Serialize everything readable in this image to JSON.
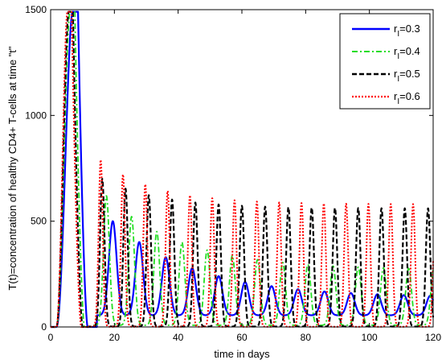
{
  "chart_data": {
    "type": "line",
    "xlabel": "time in days",
    "ylabel": "T(t)=concentration of healthy CD4+ T-cells at time \"t\"",
    "xlim": [
      0,
      120
    ],
    "ylim": [
      0,
      1500
    ],
    "xticks": [
      0,
      20,
      40,
      60,
      80,
      100,
      120
    ],
    "yticks": [
      0,
      500,
      1000,
      1500
    ],
    "grid": false,
    "legend_position": "top-right",
    "series": [
      {
        "name": "r_I=0.3",
        "label_base": "r",
        "label_sub": "I",
        "label_rest": "=0.3",
        "color": "#0000ff",
        "dash": "solid",
        "width": 2.2,
        "peak_start": 6.8,
        "peak_end": 8.6,
        "osc_start": 19.5,
        "period": 8.3,
        "first_peak": 500,
        "limit_peak": 140,
        "decay": 0.32,
        "trough": 55,
        "osc_width": 1.7
      },
      {
        "name": "r_I=0.4",
        "label_base": "r",
        "label_sub": "I",
        "label_rest": "=0.4",
        "color": "#22dd22",
        "dash": "7,3,2,3",
        "width": 1.8,
        "peak_start": 6.0,
        "peak_end": 7.6,
        "osc_start": 17.5,
        "period": 7.9,
        "first_peak": 620,
        "limit_peak": 270,
        "decay": 0.33,
        "trough": 8,
        "osc_width": 1.3
      },
      {
        "name": "r_I=0.5",
        "label_base": "r",
        "label_sub": "I",
        "label_rest": "=0.5",
        "color": "#000000",
        "dash": "6,3",
        "width": 2.2,
        "peak_start": 5.6,
        "peak_end": 7.0,
        "osc_start": 16.2,
        "period": 7.3,
        "first_peak": 700,
        "limit_peak": 560,
        "decay": 0.4,
        "trough": 2,
        "osc_width": 1.0
      },
      {
        "name": "r_I=0.6",
        "label_base": "r",
        "label_sub": "I",
        "label_rest": "=0.6",
        "color": "#ff0000",
        "dash": "2,2",
        "width": 2.0,
        "peak_start": 5.2,
        "peak_end": 6.6,
        "osc_start": 15.7,
        "period": 7.0,
        "first_peak": 790,
        "limit_peak": 580,
        "decay": 0.4,
        "trough": 1,
        "osc_width": 0.9
      }
    ]
  }
}
